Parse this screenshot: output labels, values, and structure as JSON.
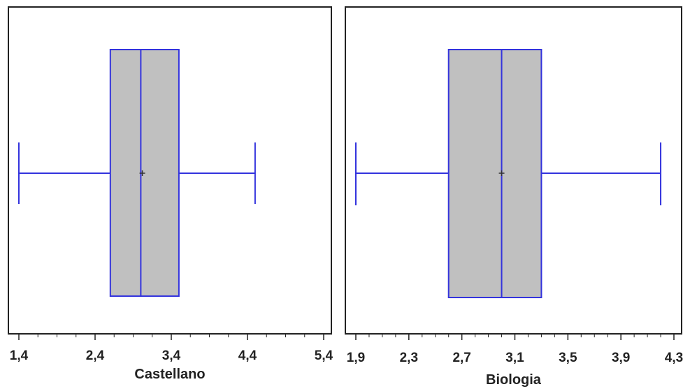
{
  "chart_data": [
    {
      "type": "boxplot",
      "xlabel": "Castellano",
      "xlim": [
        1.35,
        5.4
      ],
      "ticks": [
        1.4,
        2.4,
        3.4,
        4.4,
        5.4
      ],
      "tick_labels": [
        "1,4",
        "2,4",
        "3,4",
        "4,4",
        "5,4"
      ],
      "stats": {
        "min": 1.4,
        "q1": 2.6,
        "median": 3.0,
        "mean": 3.02,
        "q3": 3.5,
        "max": 4.5
      },
      "box_color": "#c0c0c0",
      "line_color": "#3333dd"
    },
    {
      "type": "boxplot",
      "xlabel": "Biologia",
      "xlim": [
        1.89,
        4.3
      ],
      "ticks": [
        1.9,
        2.3,
        2.7,
        3.1,
        3.5,
        3.9,
        4.3
      ],
      "tick_labels": [
        "1,9",
        "2,3",
        "2,7",
        "3,1",
        "3,5",
        "3,9",
        "4,3"
      ],
      "stats": {
        "min": 1.9,
        "q1": 2.6,
        "median": 3.0,
        "mean": 3.0,
        "q3": 3.3,
        "max": 4.2
      },
      "box_color": "#c0c0c0",
      "line_color": "#3333dd"
    }
  ]
}
